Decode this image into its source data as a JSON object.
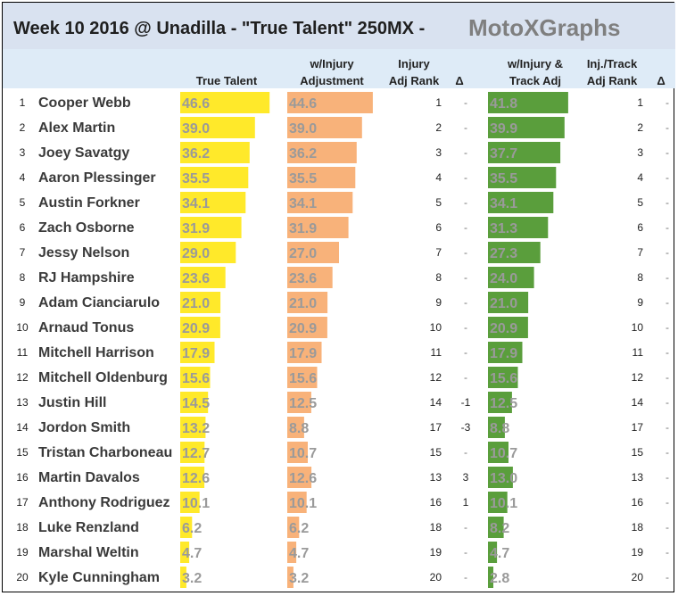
{
  "chart_data": {
    "type": "table",
    "title": "Week 10 2016 @ Unadilla - \"True Talent\" 250MX  -",
    "brand": "MotoXGraphs",
    "headers": {
      "true_talent": [
        "True Talent"
      ],
      "injury_adj": [
        "w/Injury",
        "Adjustment"
      ],
      "injury_rank": [
        "Injury",
        "Adj Rank"
      ],
      "delta1": [
        "Δ"
      ],
      "track_adj": [
        "w/Injury &",
        "Track Adj"
      ],
      "track_rank": [
        "Inj./Track",
        "Adj Rank"
      ],
      "delta2": [
        "Δ"
      ]
    },
    "colors": {
      "title_band": "#d9e2f0",
      "header_band": "#deebf7",
      "true_talent_bar": "#ffe92a",
      "injury_bar": "#f8b27a",
      "track_bar": "#5a9e3c",
      "delta_negative": "#c00000",
      "delta_positive": "#2e8b2e"
    },
    "value_max": 50,
    "rows": [
      {
        "num": "1",
        "name": "Cooper Webb",
        "true_talent": 46.6,
        "injury_adj": 44.6,
        "injury_rank": "1",
        "delta1": "-",
        "track_adj": 41.8,
        "track_rank": "1",
        "delta2": "-"
      },
      {
        "num": "2",
        "name": "Alex Martin",
        "true_talent": 39.0,
        "injury_adj": 39.0,
        "injury_rank": "2",
        "delta1": "-",
        "track_adj": 39.9,
        "track_rank": "2",
        "delta2": "-"
      },
      {
        "num": "3",
        "name": "Joey Savatgy",
        "true_talent": 36.2,
        "injury_adj": 36.2,
        "injury_rank": "3",
        "delta1": "-",
        "track_adj": 37.7,
        "track_rank": "3",
        "delta2": "-"
      },
      {
        "num": "4",
        "name": "Aaron Plessinger",
        "true_talent": 35.5,
        "injury_adj": 35.5,
        "injury_rank": "4",
        "delta1": "-",
        "track_adj": 35.5,
        "track_rank": "4",
        "delta2": "-"
      },
      {
        "num": "5",
        "name": "Austin Forkner",
        "true_talent": 34.1,
        "injury_adj": 34.1,
        "injury_rank": "5",
        "delta1": "-",
        "track_adj": 34.1,
        "track_rank": "5",
        "delta2": "-"
      },
      {
        "num": "6",
        "name": "Zach Osborne",
        "true_talent": 31.9,
        "injury_adj": 31.9,
        "injury_rank": "6",
        "delta1": "-",
        "track_adj": 31.3,
        "track_rank": "6",
        "delta2": "-"
      },
      {
        "num": "7",
        "name": "Jessy Nelson",
        "true_talent": 29.0,
        "injury_adj": 27.0,
        "injury_rank": "7",
        "delta1": "-",
        "track_adj": 27.3,
        "track_rank": "7",
        "delta2": "-"
      },
      {
        "num": "8",
        "name": "RJ Hampshire",
        "true_talent": 23.6,
        "injury_adj": 23.6,
        "injury_rank": "8",
        "delta1": "-",
        "track_adj": 24.0,
        "track_rank": "8",
        "delta2": "-"
      },
      {
        "num": "9",
        "name": "Adam Cianciarulo",
        "true_talent": 21.0,
        "injury_adj": 21.0,
        "injury_rank": "9",
        "delta1": "-",
        "track_adj": 21.0,
        "track_rank": "9",
        "delta2": "-"
      },
      {
        "num": "10",
        "name": "Arnaud Tonus",
        "true_talent": 20.9,
        "injury_adj": 20.9,
        "injury_rank": "10",
        "delta1": "-",
        "track_adj": 20.9,
        "track_rank": "10",
        "delta2": "-"
      },
      {
        "num": "11",
        "name": "Mitchell Harrison",
        "true_talent": 17.9,
        "injury_adj": 17.9,
        "injury_rank": "11",
        "delta1": "-",
        "track_adj": 17.9,
        "track_rank": "11",
        "delta2": "-"
      },
      {
        "num": "12",
        "name": "Mitchell Oldenburg",
        "true_talent": 15.6,
        "injury_adj": 15.6,
        "injury_rank": "12",
        "delta1": "-",
        "track_adj": 15.6,
        "track_rank": "12",
        "delta2": "-"
      },
      {
        "num": "13",
        "name": "Justin Hill",
        "true_talent": 14.5,
        "injury_adj": 12.5,
        "injury_rank": "14",
        "delta1": "-1",
        "track_adj": 12.5,
        "track_rank": "14",
        "delta2": "-"
      },
      {
        "num": "14",
        "name": "Jordon Smith",
        "true_talent": 13.2,
        "injury_adj": 8.8,
        "injury_rank": "17",
        "delta1": "-3",
        "track_adj": 8.8,
        "track_rank": "17",
        "delta2": "-"
      },
      {
        "num": "15",
        "name": "Tristan Charboneau",
        "true_talent": 12.7,
        "injury_adj": 10.7,
        "injury_rank": "15",
        "delta1": "-",
        "track_adj": 10.7,
        "track_rank": "15",
        "delta2": "-"
      },
      {
        "num": "16",
        "name": "Martin Davalos",
        "true_talent": 12.6,
        "injury_adj": 12.6,
        "injury_rank": "13",
        "delta1": "3",
        "track_adj": 13.0,
        "track_rank": "13",
        "delta2": "-"
      },
      {
        "num": "17",
        "name": "Anthony Rodriguez",
        "true_talent": 10.1,
        "injury_adj": 10.1,
        "injury_rank": "16",
        "delta1": "1",
        "track_adj": 10.1,
        "track_rank": "16",
        "delta2": "-"
      },
      {
        "num": "18",
        "name": "Luke Renzland",
        "true_talent": 6.2,
        "injury_adj": 6.2,
        "injury_rank": "18",
        "delta1": "-",
        "track_adj": 8.2,
        "track_rank": "18",
        "delta2": "-"
      },
      {
        "num": "19",
        "name": "Marshal Weltin",
        "true_talent": 4.7,
        "injury_adj": 4.7,
        "injury_rank": "19",
        "delta1": "-",
        "track_adj": 4.7,
        "track_rank": "19",
        "delta2": "-"
      },
      {
        "num": "20",
        "name": "Kyle Cunningham",
        "true_talent": 3.2,
        "injury_adj": 3.2,
        "injury_rank": "20",
        "delta1": "-",
        "track_adj": 2.8,
        "track_rank": "20",
        "delta2": "-"
      }
    ]
  }
}
